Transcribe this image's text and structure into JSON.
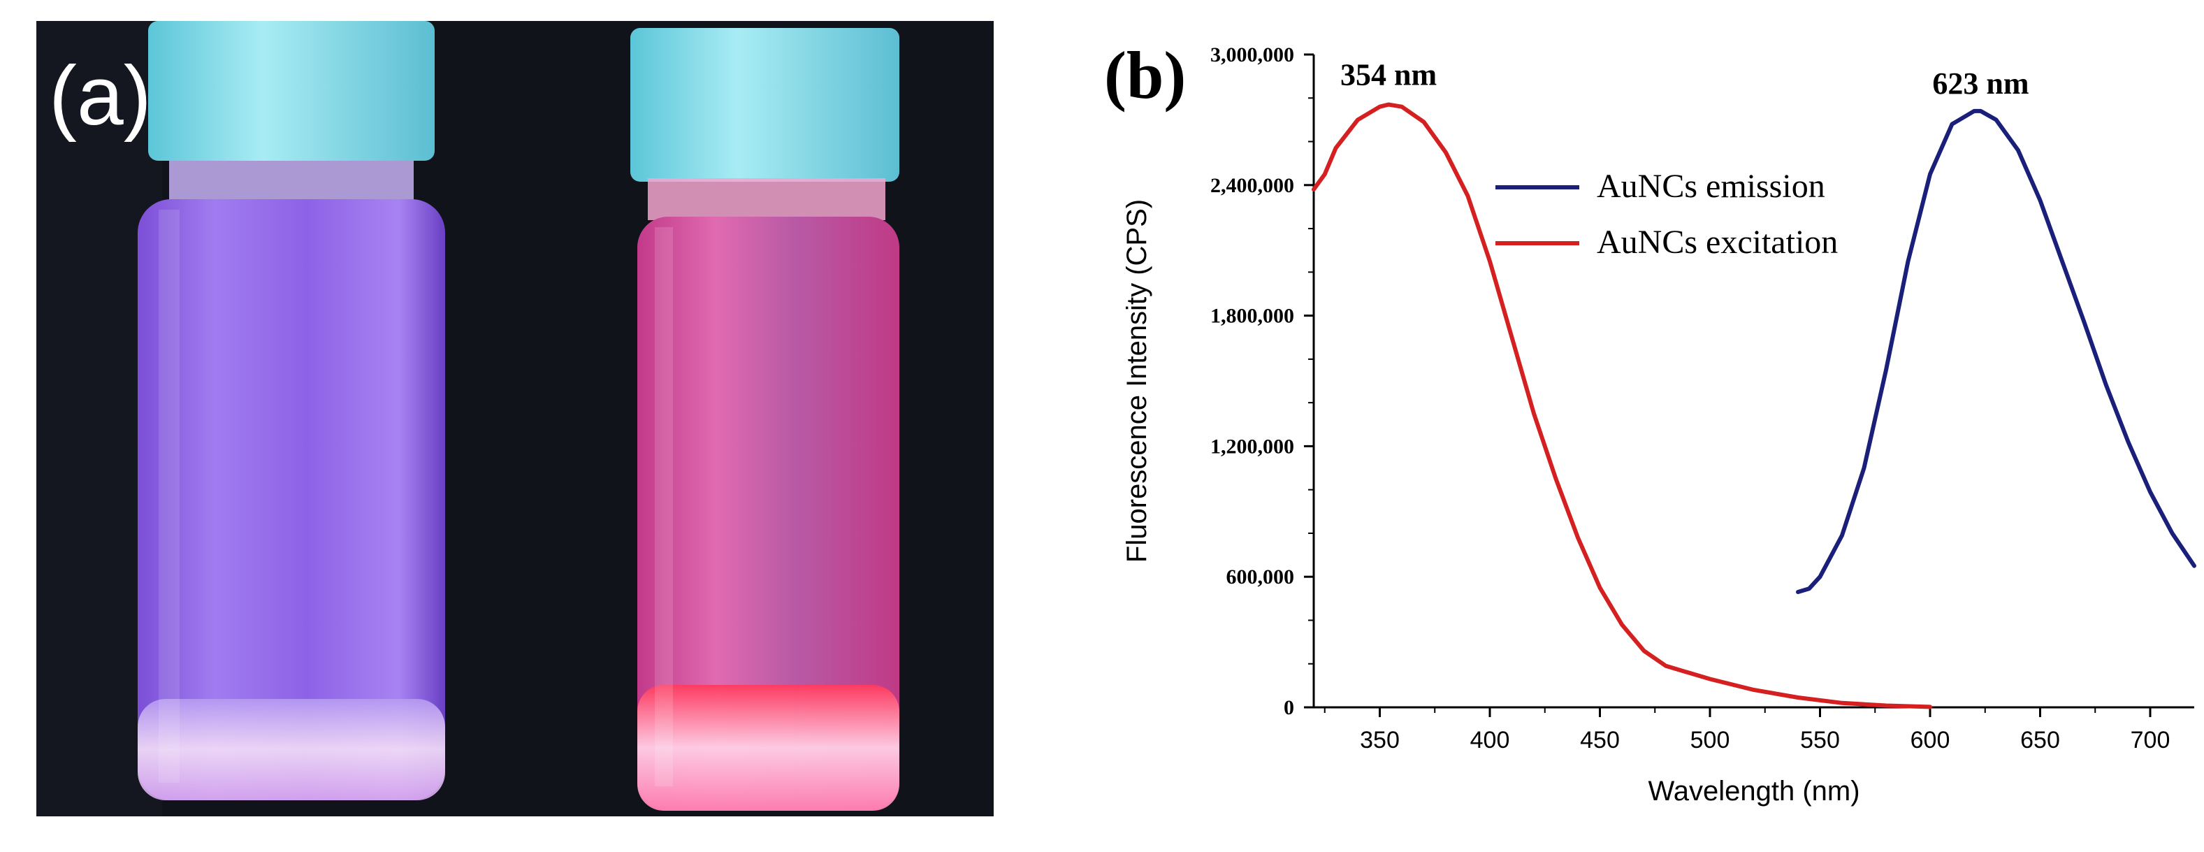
{
  "panel_a": {
    "label": "(a)",
    "vials": [
      {
        "name": "left vial",
        "glow": "violet"
      },
      {
        "name": "right vial",
        "glow": "pink-red"
      }
    ],
    "colors": {
      "background": "#0f1117",
      "cap": "#7fd9e8",
      "left_liquid": "#8a5ce0",
      "right_liquid": "#d04a9a",
      "right_bottom": "#ff3355"
    }
  },
  "panel_b": {
    "label": "(b)"
  },
  "chart_data": {
    "type": "line",
    "title": "",
    "xlabel": "Wavelength (nm)",
    "ylabel": "Fluorescence Intensity (CPS)",
    "xlim": [
      320,
      720
    ],
    "ylim": [
      0,
      3000000
    ],
    "x_ticks": [
      350,
      400,
      450,
      500,
      550,
      600,
      650,
      700
    ],
    "x_tick_labels": [
      "350",
      "400",
      "450",
      "500",
      "550",
      "600",
      "650",
      "700"
    ],
    "y_ticks": [
      0,
      600000,
      1200000,
      1800000,
      2400000,
      3000000
    ],
    "y_tick_labels": [
      "0",
      "600,000",
      "1,200,000",
      "1,800,000",
      "2,400,000",
      "3,000,000"
    ],
    "legend_position": "upper-middle",
    "annotations": [
      {
        "text": "354 nm",
        "x": 354,
        "y": 2860000
      },
      {
        "text": "623 nm",
        "x": 623,
        "y": 2820000
      }
    ],
    "series": [
      {
        "name": "AuNCs emission",
        "color": "#1a1f7a",
        "x": [
          540,
          545,
          550,
          560,
          570,
          580,
          590,
          600,
          610,
          620,
          623,
          630,
          640,
          650,
          660,
          670,
          680,
          690,
          700,
          710,
          720
        ],
        "y": [
          530000,
          545000,
          600000,
          790000,
          1100000,
          1550000,
          2050000,
          2450000,
          2680000,
          2740000,
          2740000,
          2700000,
          2560000,
          2330000,
          2050000,
          1770000,
          1480000,
          1220000,
          990000,
          800000,
          650000
        ]
      },
      {
        "name": "AuNCs excitation",
        "color": "#d42020",
        "x": [
          320,
          325,
          330,
          340,
          350,
          354,
          360,
          370,
          380,
          390,
          400,
          410,
          420,
          430,
          440,
          450,
          460,
          470,
          480,
          500,
          520,
          540,
          560,
          580,
          600
        ],
        "y": [
          2380000,
          2450000,
          2570000,
          2700000,
          2760000,
          2770000,
          2760000,
          2690000,
          2550000,
          2350000,
          2050000,
          1700000,
          1350000,
          1050000,
          780000,
          550000,
          380000,
          260000,
          190000,
          130000,
          80000,
          45000,
          20000,
          8000,
          2000
        ]
      }
    ]
  }
}
